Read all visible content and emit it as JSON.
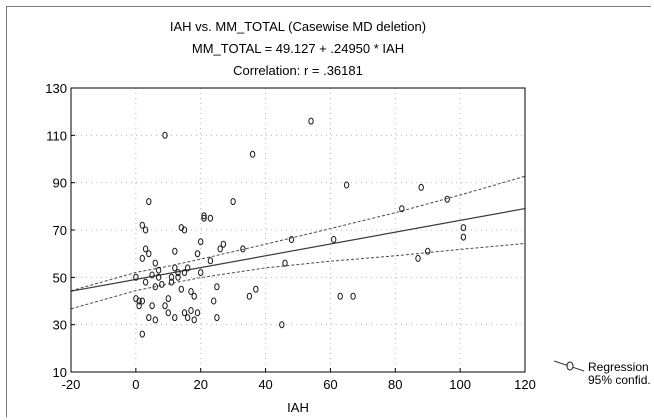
{
  "chart_data": {
    "type": "scatter",
    "title": "IAH vs. MM_TOTAL (Casewise MD deletion)",
    "subtitle": "MM_TOTAL = 49.127 + .24950 * IAH",
    "correlation": "Correlation: r = .36181",
    "xlabel": "IAH",
    "ylabel": "",
    "xlim": [
      -20,
      120
    ],
    "ylim": [
      10,
      130
    ],
    "x_ticks": [
      "-20",
      "0",
      "20",
      "40",
      "60",
      "80",
      "100",
      "120"
    ],
    "y_ticks": [
      "10",
      "30",
      "50",
      "70",
      "90",
      "110",
      "130"
    ],
    "grid": true,
    "legend": {
      "position": "right",
      "entries": [
        "Regression",
        "95% confid."
      ]
    },
    "regression": {
      "intercept": 49.127,
      "slope": 0.2495
    },
    "confidence_band": {
      "upper": [
        [
          -20,
          44.3
        ],
        [
          0,
          52.1
        ],
        [
          10,
          54.7
        ],
        [
          20,
          57.7
        ],
        [
          40,
          64.0
        ],
        [
          60,
          70.6
        ],
        [
          80,
          77.3
        ],
        [
          100,
          84.8
        ],
        [
          120,
          92.7
        ]
      ],
      "lower": [
        [
          -20,
          36.7
        ],
        [
          0,
          44.4
        ],
        [
          10,
          47.2
        ],
        [
          20,
          49.9
        ],
        [
          40,
          54.0
        ],
        [
          60,
          56.8
        ],
        [
          80,
          59.1
        ],
        [
          100,
          61.8
        ],
        [
          120,
          64.3
        ]
      ]
    },
    "points": [
      [
        0,
        50
      ],
      [
        0,
        41
      ],
      [
        1,
        38
      ],
      [
        1,
        40
      ],
      [
        2,
        26
      ],
      [
        2,
        40
      ],
      [
        2,
        72
      ],
      [
        2,
        58
      ],
      [
        3,
        70
      ],
      [
        3,
        62
      ],
      [
        3,
        48
      ],
      [
        4,
        82
      ],
      [
        4,
        60
      ],
      [
        4,
        33
      ],
      [
        5,
        38
      ],
      [
        5,
        51
      ],
      [
        6,
        32
      ],
      [
        6,
        56
      ],
      [
        6,
        46
      ],
      [
        7,
        50
      ],
      [
        7,
        53
      ],
      [
        8,
        47
      ],
      [
        9,
        110
      ],
      [
        9,
        38
      ],
      [
        10,
        35
      ],
      [
        10,
        41
      ],
      [
        11,
        50
      ],
      [
        11,
        48
      ],
      [
        12,
        33
      ],
      [
        12,
        54
      ],
      [
        12,
        61
      ],
      [
        13,
        50
      ],
      [
        13,
        52
      ],
      [
        14,
        71
      ],
      [
        14,
        45
      ],
      [
        15,
        35
      ],
      [
        15,
        52
      ],
      [
        15,
        70
      ],
      [
        16,
        33
      ],
      [
        16,
        54
      ],
      [
        17,
        36
      ],
      [
        17,
        44
      ],
      [
        18,
        32
      ],
      [
        18,
        42
      ],
      [
        19,
        35
      ],
      [
        19,
        60
      ],
      [
        20,
        65
      ],
      [
        20,
        52
      ],
      [
        21,
        76
      ],
      [
        21,
        75
      ],
      [
        23,
        75
      ],
      [
        23,
        57
      ],
      [
        24,
        40
      ],
      [
        25,
        33
      ],
      [
        25,
        46
      ],
      [
        26,
        62
      ],
      [
        27,
        64
      ],
      [
        30,
        82
      ],
      [
        33,
        62
      ],
      [
        35,
        42
      ],
      [
        36,
        102
      ],
      [
        37,
        45
      ],
      [
        45,
        30
      ],
      [
        46,
        56
      ],
      [
        48,
        66
      ],
      [
        54,
        116
      ],
      [
        61,
        66
      ],
      [
        63,
        42
      ],
      [
        65,
        89
      ],
      [
        67,
        42
      ],
      [
        82,
        79
      ],
      [
        87,
        58
      ],
      [
        88,
        88
      ],
      [
        90,
        61
      ],
      [
        96,
        83
      ],
      [
        101,
        71
      ],
      [
        101,
        67
      ]
    ],
    "colors": {
      "regression": "#3a3a3a",
      "band": "#4a4a4a",
      "points": "#1a1a1a",
      "grid": "#b8b8b8"
    }
  }
}
